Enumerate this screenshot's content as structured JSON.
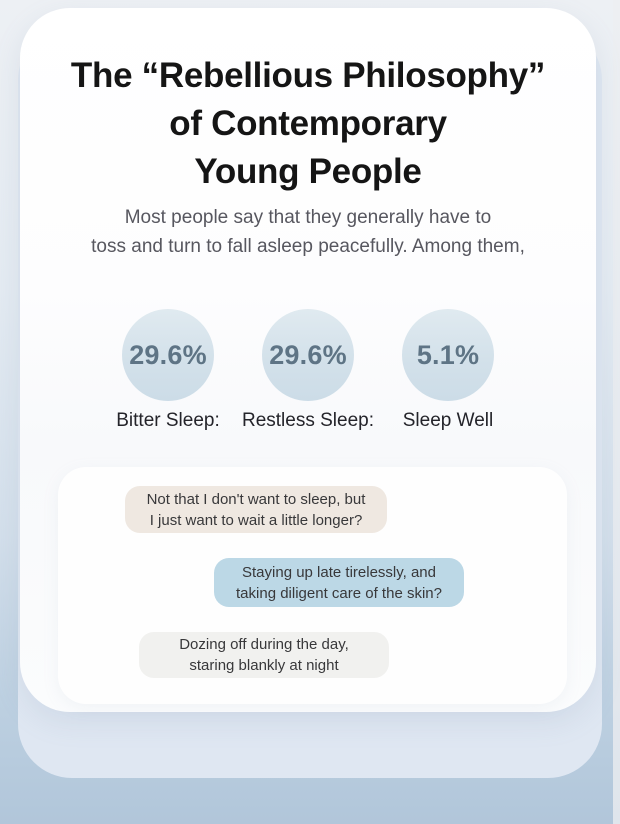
{
  "page": {
    "title_lines": [
      "The “Rebellious Philosophy”",
      "of Contemporary",
      "Young People"
    ],
    "subtitle_lines": [
      "Most people say that they generally have to",
      "toss and turn to fall asleep peacefully. Among them,"
    ],
    "stats": [
      {
        "value": "29.6%",
        "label": "Bitter Sleep:"
      },
      {
        "value": "29.6%",
        "label": "Restless Sleep:"
      },
      {
        "value": "5.1%",
        "label": "Sleep Well"
      }
    ],
    "bubbles": [
      {
        "lines": [
          "Not that I don't want to sleep, but",
          "I just want to wait a little longer?"
        ],
        "color": "#efe8e1"
      },
      {
        "lines": [
          "Staying up late tirelessly, and",
          "taking diligent care of the skin?"
        ],
        "color": "#bcd8e6"
      },
      {
        "lines": [
          "Dozing off during the day,",
          "staring blankly at night"
        ],
        "color": "#f1f1ef"
      }
    ],
    "colors": {
      "background_top": "#edf0f4",
      "background_bottom": "#b1c6da",
      "outer_card": "#dfe7f2",
      "main_card": "#ffffff",
      "stat_circle_fill": "#d3e1ea",
      "stat_value_text": "#5e7485",
      "title_text": "#151515",
      "subtitle_text": "#57575f",
      "bubble_beige": "#efe8e1",
      "bubble_blue": "#bcd8e6",
      "bubble_gray": "#f1f1ef"
    }
  }
}
